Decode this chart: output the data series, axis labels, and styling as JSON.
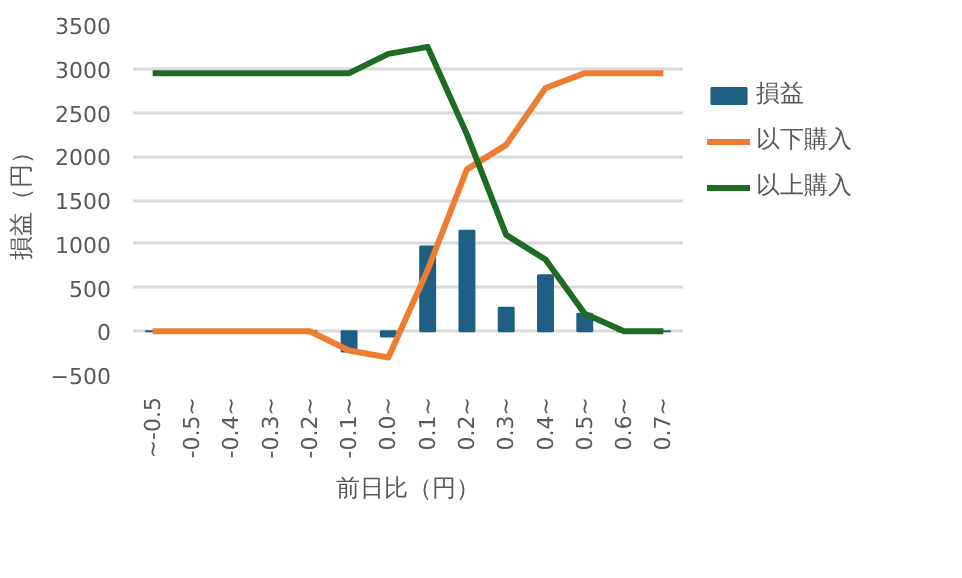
{
  "chart_data": {
    "type": "bar",
    "xlabel": "前日比（円）",
    "ylabel": "損益（円）",
    "categories": [
      "~-0.5",
      "-0.5~",
      "-0.4~",
      "-0.3~",
      "-0.2~",
      "-0.1~",
      "0.0~",
      "0.1~",
      "0.2~",
      "0.3~",
      "0.4~",
      "0.5~",
      "0.6~",
      "0.7~"
    ],
    "series": [
      {
        "name": "損益",
        "color": "#1f5f84",
        "values": [
          0,
          0,
          0,
          0,
          0,
          -230,
          -60,
          970,
          1150,
          270,
          640,
          200,
          0,
          0
        ]
      },
      {
        "name": "以下購入",
        "type": "line",
        "color": "#ed7d31",
        "values": [
          0,
          0,
          0,
          0,
          0,
          -220,
          -300,
          700,
          1850,
          2130,
          2780,
          2950,
          2950,
          2950
        ]
      },
      {
        "name": "以上購入",
        "type": "line",
        "color": "#1e6b24",
        "values": [
          2950,
          2950,
          2950,
          2950,
          2950,
          2950,
          3170,
          3250,
          2250,
          1100,
          820,
          200,
          0,
          0
        ]
      }
    ],
    "ylim": [
      -500,
      3500
    ],
    "yticks": [
      -500,
      0,
      500,
      1000,
      1500,
      2000,
      2500,
      3000,
      3500
    ],
    "grid": "y",
    "legend": "right"
  }
}
